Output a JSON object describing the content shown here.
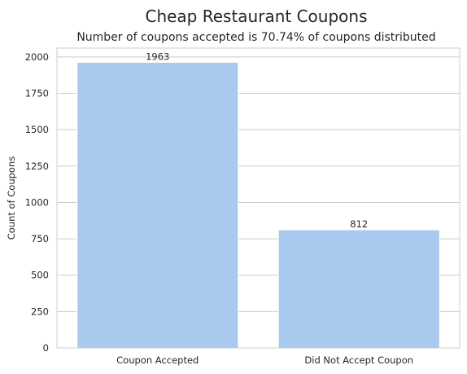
{
  "chart_data": {
    "type": "bar",
    "title": "Cheap Restaurant Coupons",
    "subtitle": "Number of coupons accepted is 70.74% of coupons distributed",
    "xlabel": "",
    "ylabel": "Count of Coupons",
    "categories": [
      "Coupon Accepted",
      "Did Not Accept Coupon"
    ],
    "values": [
      1963,
      812
    ],
    "data_labels": [
      "1963",
      "812"
    ],
    "ylim": [
      0,
      2061
    ],
    "yticks": [
      0,
      250,
      500,
      750,
      1000,
      1250,
      1500,
      1750,
      2000
    ],
    "grid": true,
    "bar_color": "#a9c9ee"
  }
}
